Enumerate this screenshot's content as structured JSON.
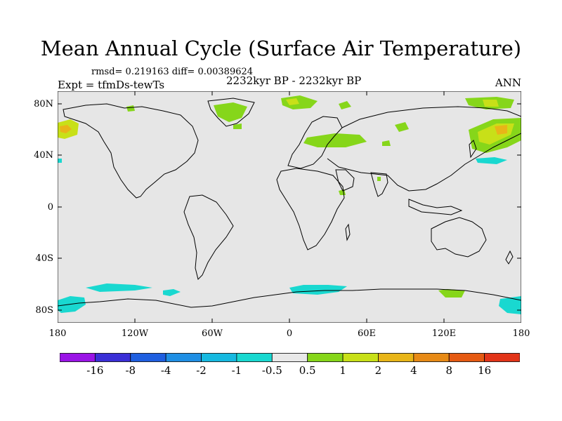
{
  "title": "Mean Annual Cycle (Surface Air Temperature)",
  "stats": "rmsd= 0.219163 diff= 0.00389624",
  "experiment": "Expt = tfmDs-tewTs",
  "period": "2232kyr BP - 2232kyr BP",
  "season": "ANN",
  "lat_ticks": [
    "80N",
    "40N",
    "0",
    "40S",
    "80S"
  ],
  "lon_ticks": [
    "180",
    "120W",
    "60W",
    "0",
    "60E",
    "120E",
    "180"
  ],
  "colorbar": {
    "colors": [
      "#9a14e6",
      "#3a2fd6",
      "#1f5fe0",
      "#1f8fe4",
      "#16b9e0",
      "#19d8d0",
      "#e8e8e8",
      "#86d61a",
      "#c8e018",
      "#e8b518",
      "#e78a16",
      "#e55a12",
      "#e23418"
    ],
    "labels": [
      "-16",
      "-8",
      "-4",
      "-2",
      "-1",
      "-0.5",
      "0.5",
      "1",
      "2",
      "4",
      "8",
      "16"
    ]
  },
  "colors": {
    "background": "#e6e6e6",
    "positive_small": "#86d61a",
    "positive_mid": "#c8e018",
    "positive_high": "#e8b518",
    "negative_small": "#19d8d0"
  }
}
